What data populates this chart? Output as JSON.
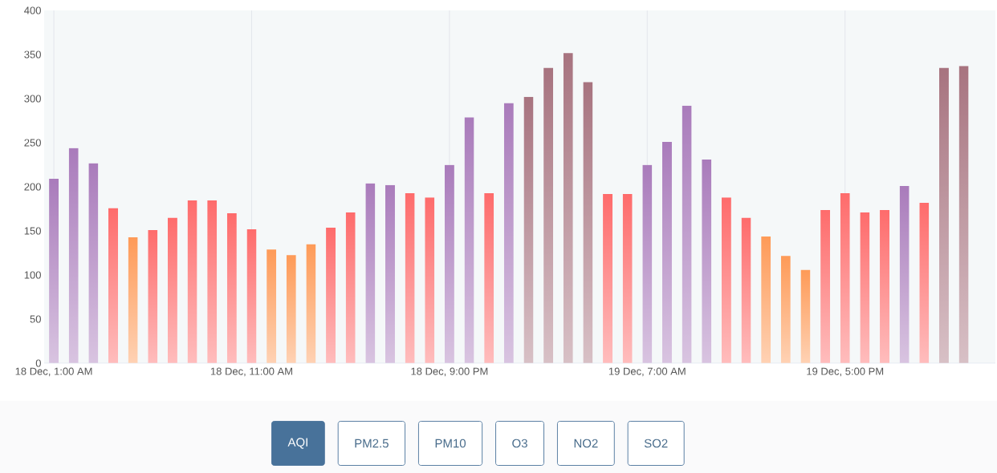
{
  "chart_data": {
    "type": "bar",
    "categories": [
      "18 Dec, 1:00 AM",
      null,
      null,
      null,
      null,
      null,
      null,
      null,
      null,
      null,
      "18 Dec, 11:00 AM",
      null,
      null,
      null,
      null,
      null,
      null,
      null,
      null,
      null,
      "18 Dec, 9:00 PM",
      null,
      null,
      null,
      null,
      null,
      null,
      null,
      null,
      null,
      "19 Dec, 7:00 AM",
      null,
      null,
      null,
      null,
      null,
      null,
      null,
      null,
      null,
      "19 Dec, 5:00 PM",
      null,
      null,
      null,
      null,
      null,
      null
    ],
    "values": [
      209,
      244,
      227,
      176,
      143,
      151,
      165,
      185,
      185,
      170,
      152,
      129,
      123,
      135,
      154,
      171,
      204,
      202,
      193,
      188,
      225,
      279,
      193,
      295,
      302,
      335,
      352,
      319,
      192,
      192,
      225,
      251,
      292,
      231,
      188,
      165,
      144,
      122,
      106,
      174,
      193,
      171,
      174,
      201,
      182,
      335,
      337
    ],
    "colors": [
      "#a97bbb",
      "#a97bbb",
      "#a97bbb",
      "#fe6b6b",
      "#fe9a57",
      "#fe6b6b",
      "#fe6b6b",
      "#fe6b6b",
      "#fe6b6b",
      "#fe6b6b",
      "#fe6b6b",
      "#fe9a57",
      "#fe9a57",
      "#fe9a57",
      "#fe6b6b",
      "#fe6b6b",
      "#a97bbb",
      "#a97bbb",
      "#fe6b6b",
      "#fe6b6b",
      "#a97bbb",
      "#a97bbb",
      "#fe6b6b",
      "#a97bbb",
      "#a7737f",
      "#a7737f",
      "#a7737f",
      "#a7737f",
      "#fe6b6b",
      "#fe6b6b",
      "#a97bbb",
      "#a97bbb",
      "#a97bbb",
      "#a97bbb",
      "#fe6b6b",
      "#fe6b6b",
      "#fe9a57",
      "#fe9a57",
      "#fe9a57",
      "#fe6b6b",
      "#fe6b6b",
      "#fe6b6b",
      "#fe6b6b",
      "#a97bbb",
      "#fe6b6b",
      "#a7737f",
      "#a7737f"
    ],
    "ylim": [
      0,
      400
    ],
    "yticks": [
      0,
      50,
      100,
      150,
      200,
      250,
      300,
      350,
      400
    ],
    "grid": "x",
    "annotations": [
      "AQI",
      "PM2.5",
      "PM10",
      "O3",
      "NO2",
      "SO2"
    ]
  }
}
